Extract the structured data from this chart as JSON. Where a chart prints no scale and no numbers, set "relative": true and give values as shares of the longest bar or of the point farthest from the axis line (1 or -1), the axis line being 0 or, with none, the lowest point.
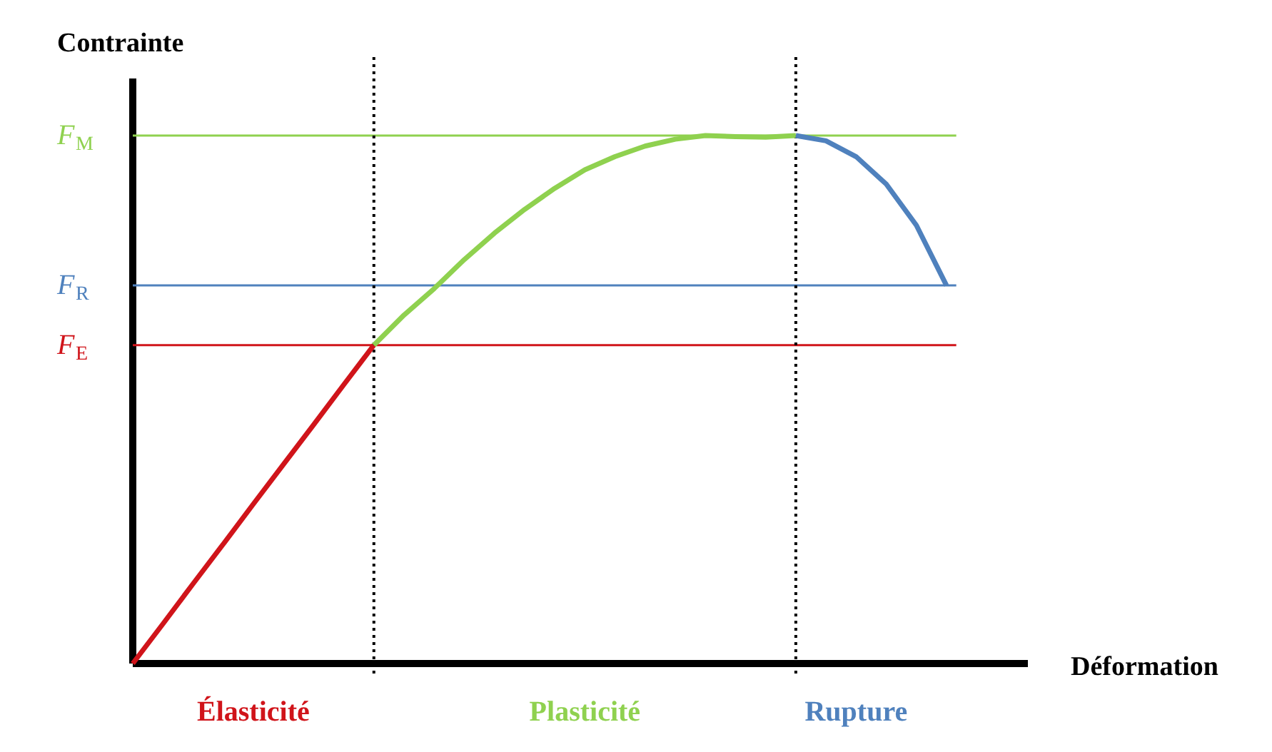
{
  "chart_data": {
    "type": "line",
    "relative": true,
    "xlabel": "Déformation",
    "ylabel": "Contrainte",
    "marker": "none",
    "line_style": "solid",
    "categories": [
      null,
      null,
      null,
      null,
      null,
      null,
      null,
      null,
      null,
      null,
      null,
      null,
      null,
      null,
      null,
      null,
      null,
      null,
      null,
      null,
      null,
      null,
      null,
      null,
      null,
      null,
      null,
      null
    ],
    "series": [
      {
        "color": "#d0141a",
        "values": [
          0,
          0.075,
          0.151,
          0.226,
          0.302,
          0.377,
          0.452,
          0.528,
          0.603,
          null,
          null,
          null,
          null,
          null,
          null,
          null,
          null,
          null,
          null,
          null,
          null,
          null,
          null,
          null,
          null,
          null,
          null,
          null
        ]
      },
      {
        "color": "#8fd14f",
        "values": [
          null,
          null,
          null,
          null,
          null,
          null,
          null,
          null,
          0.603,
          0.66,
          0.71,
          0.765,
          0.815,
          0.86,
          0.9,
          0.935,
          0.96,
          0.98,
          0.993,
          1.0,
          0.998,
          0.997,
          1.0,
          null,
          null,
          null,
          null,
          null
        ]
      },
      {
        "color": "#4f81bd",
        "values": [
          null,
          null,
          null,
          null,
          null,
          null,
          null,
          null,
          null,
          null,
          null,
          null,
          null,
          null,
          null,
          null,
          null,
          null,
          null,
          null,
          null,
          null,
          1.0,
          0.99,
          0.96,
          0.908,
          0.83,
          0.716
        ]
      }
    ],
    "ref_lines": [
      {
        "axis": "y",
        "value": 1.0,
        "label": "F$_{M}$",
        "color": "#8fd14f"
      },
      {
        "axis": "y",
        "value": 0.716,
        "label": "F$_{R}$",
        "color": "#4f81bd"
      },
      {
        "axis": "y",
        "value": 0.603,
        "label": "F$_{E}$",
        "color": "#d0141a"
      },
      {
        "axis": "x",
        "color": "#000000",
        "line_style": "dotted"
      },
      {
        "axis": "x",
        "color": "#000000",
        "line_style": "dotted"
      }
    ],
    "annotations": [
      "Élasticité",
      "Plasticité",
      "Rupture"
    ]
  }
}
